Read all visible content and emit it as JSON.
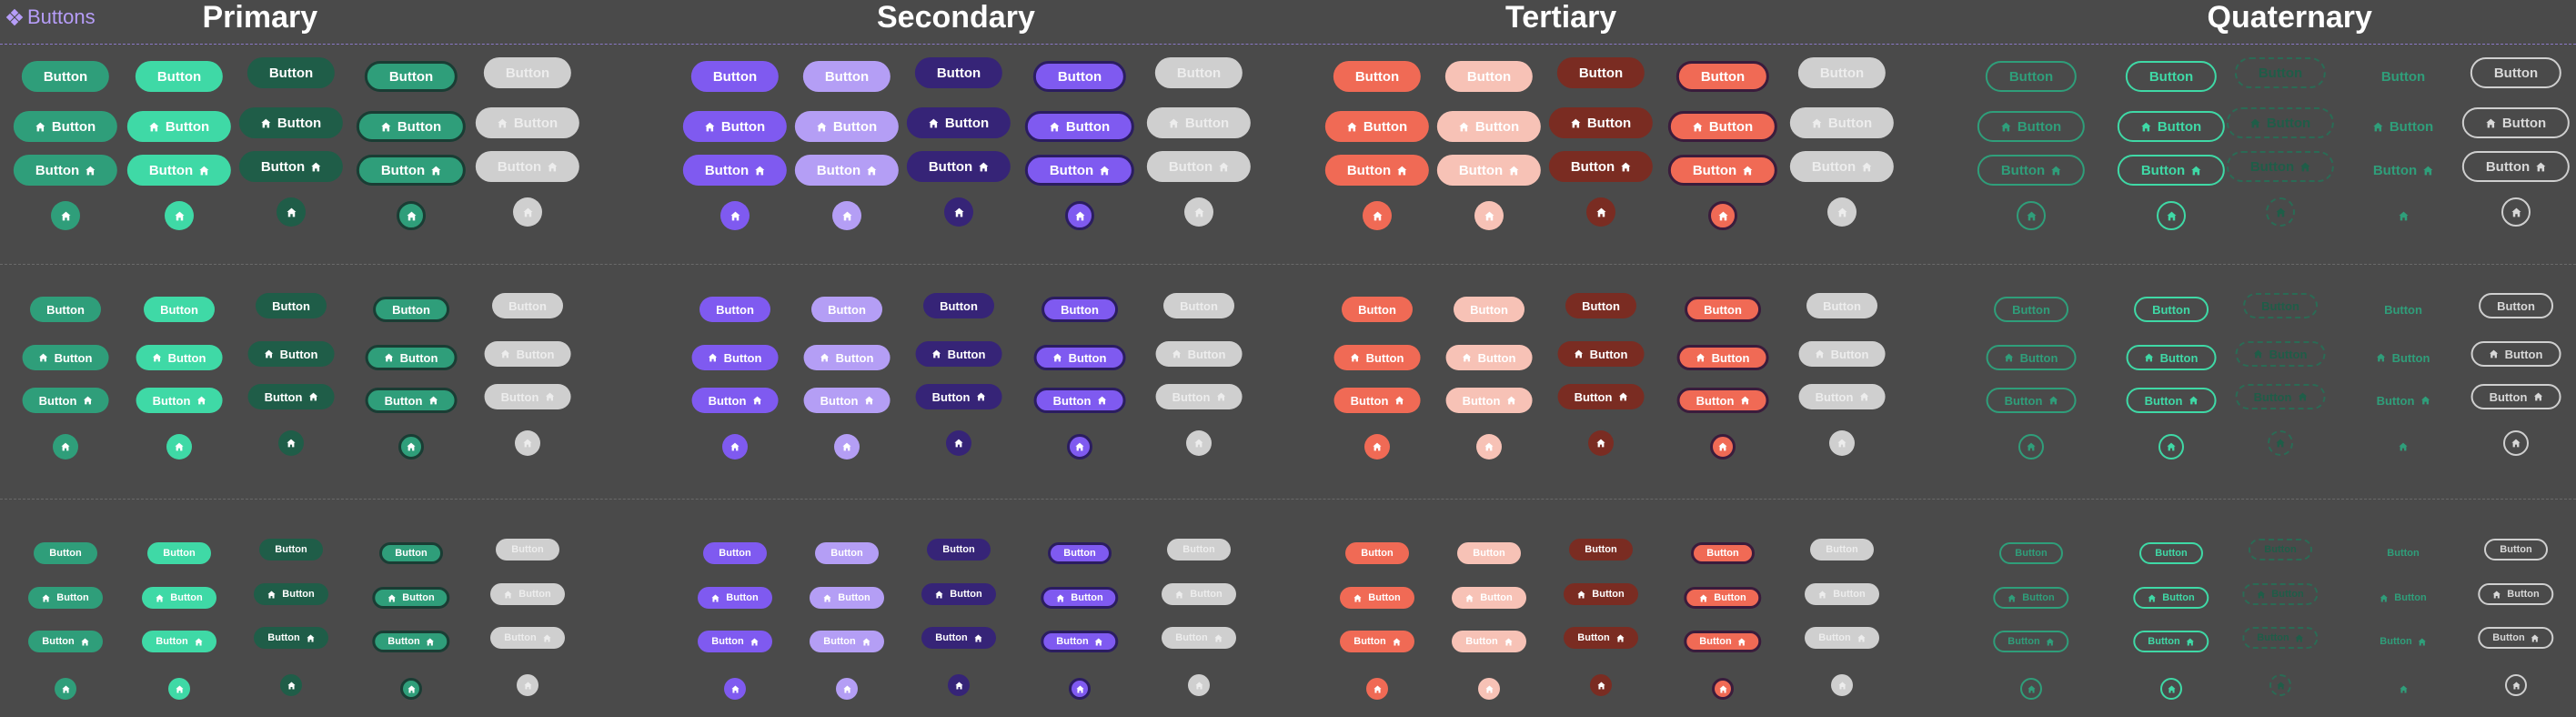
{
  "frame": {
    "label": "Buttons",
    "icon": "component-icon",
    "accent_color": "#b69df8"
  },
  "button_label": "Button",
  "icon_name": "home-icon",
  "sizes": [
    "large",
    "medium",
    "small"
  ],
  "states": [
    "default",
    "hover",
    "pressed",
    "focus",
    "disabled"
  ],
  "variants": [
    "text",
    "icon-left",
    "icon-right",
    "icon-only"
  ],
  "groups": [
    {
      "id": "primary",
      "title": "Primary",
      "color": "#2f9e7a"
    },
    {
      "id": "secondary",
      "title": "Secondary",
      "color": "#7f5af0"
    },
    {
      "id": "tertiary",
      "title": "Tertiary",
      "color": "#f06a55"
    },
    {
      "id": "quaternary",
      "title": "Quaternary",
      "color": "#2f9e7a"
    }
  ]
}
